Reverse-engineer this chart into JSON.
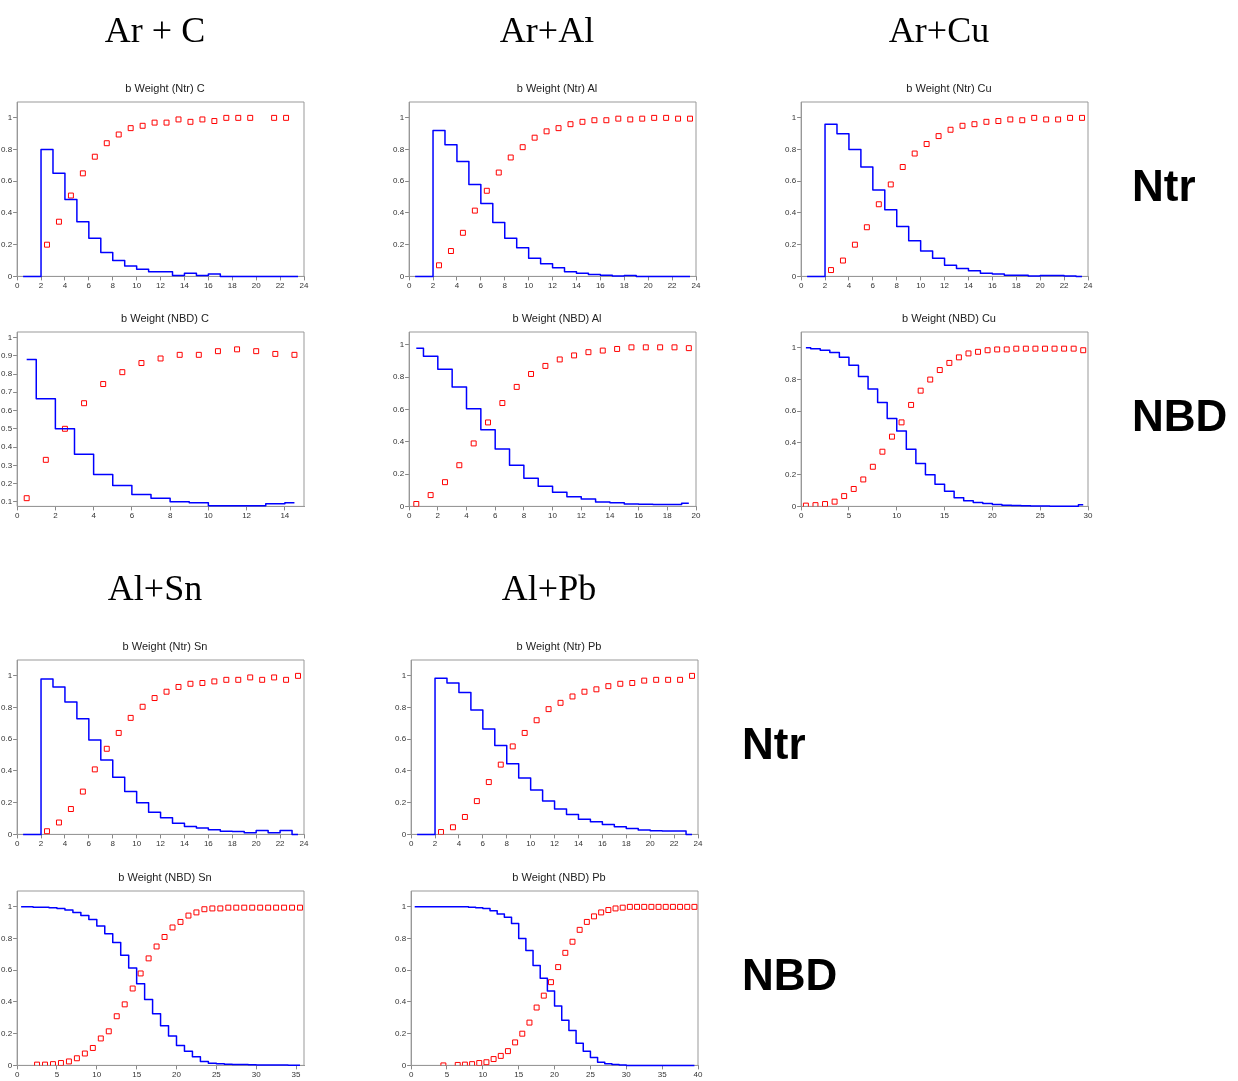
{
  "chart_data": [
    {
      "type": "step",
      "title": "Ar + C",
      "subtitle": "b Weight (Ntr) C",
      "xlim": [
        0,
        24
      ],
      "xticks": [
        0,
        2,
        4,
        6,
        8,
        10,
        12,
        14,
        16,
        18,
        20,
        22,
        24
      ],
      "ylim": [
        0,
        1.1
      ],
      "yticks": [
        0,
        0.2,
        0.4,
        0.6,
        0.8,
        1
      ],
      "grid": false,
      "series": [
        {
          "color": "#0000ff",
          "x": [
            0.5,
            1.5,
            2.5,
            3.5,
            4.5,
            5.5,
            6.5,
            7.5,
            8.5,
            9.5,
            10.5,
            11.5,
            12.5,
            13.5,
            14.5,
            15.5,
            16.5,
            17.5,
            18.5,
            19.5,
            20.5,
            21.5,
            22.5,
            23.5
          ],
          "values": [
            0,
            0,
            0.8,
            0.65,
            0.485,
            0.345,
            0.24,
            0.15,
            0.1,
            0.065,
            0.045,
            0.03,
            0.03,
            0.005,
            0.02,
            0.005,
            0.015,
            0,
            0,
            0,
            0,
            0,
            0,
            0
          ]
        },
        {
          "type": "scatter",
          "color": "#ff0000",
          "marker": "square",
          "x": [
            2.5,
            3.5,
            4.5,
            5.5,
            6.5,
            7.5,
            8.5,
            9.5,
            10.5,
            11.5,
            12.5,
            13.5,
            14.5,
            15.5,
            16.5,
            17.5,
            18.5,
            19.5,
            20.5,
            21.5,
            22.5
          ],
          "values": [
            0.2,
            0.345,
            0.51,
            0.65,
            0.755,
            0.84,
            0.895,
            0.935,
            0.95,
            0.97,
            0.97,
            0.99,
            0.975,
            0.99,
            0.98,
            1.0,
            1.0,
            1.0,
            null,
            1.0,
            1.0
          ]
        }
      ]
    },
    {
      "type": "step",
      "title": "Ar+Al",
      "subtitle": "b Weight (Ntr) Al",
      "xlim": [
        0,
        24
      ],
      "xticks": [
        0,
        2,
        4,
        6,
        8,
        10,
        12,
        14,
        16,
        18,
        20,
        22,
        24
      ],
      "ylim": [
        0,
        1.1
      ],
      "yticks": [
        0,
        0.2,
        0.4,
        0.6,
        0.8,
        1
      ],
      "grid": false,
      "series": [
        {
          "color": "#0000ff",
          "x": [
            0.5,
            1.5,
            2.5,
            3.5,
            4.5,
            5.5,
            6.5,
            7.5,
            8.5,
            9.5,
            10.5,
            11.5,
            12.5,
            13.5,
            14.5,
            15.5,
            16.5,
            17.5,
            18.5,
            19.5,
            20.5,
            21.5,
            22.5,
            23.5
          ],
          "values": [
            0,
            0,
            0.92,
            0.83,
            0.725,
            0.58,
            0.46,
            0.34,
            0.24,
            0.18,
            0.115,
            0.08,
            0.055,
            0.03,
            0.02,
            0.012,
            0.008,
            0.003,
            0.005,
            0,
            0,
            0,
            0,
            0
          ]
        },
        {
          "type": "scatter",
          "color": "#ff0000",
          "marker": "square",
          "x": [
            2.5,
            3.5,
            4.5,
            5.5,
            6.5,
            7.5,
            8.5,
            9.5,
            10.5,
            11.5,
            12.5,
            13.5,
            14.5,
            15.5,
            16.5,
            17.5,
            18.5,
            19.5,
            20.5,
            21.5,
            22.5,
            23.5
          ],
          "values": [
            0.07,
            0.16,
            0.275,
            0.415,
            0.54,
            0.655,
            0.75,
            0.815,
            0.875,
            0.915,
            0.935,
            0.96,
            0.975,
            0.985,
            0.985,
            0.995,
            0.99,
            0.995,
            1.0,
            1.0,
            0.995,
            0.995
          ]
        }
      ]
    },
    {
      "type": "step",
      "title": "Ar+Cu",
      "subtitle": "b Weight (Ntr) Cu",
      "annotations": [
        "Ntr"
      ],
      "xlim": [
        0,
        24
      ],
      "xticks": [
        0,
        2,
        4,
        6,
        8,
        10,
        12,
        14,
        16,
        18,
        20,
        22,
        24
      ],
      "ylim": [
        0,
        1.1
      ],
      "yticks": [
        0,
        0.2,
        0.4,
        0.6,
        0.8,
        1
      ],
      "grid": false,
      "series": [
        {
          "color": "#0000ff",
          "x": [
            0.5,
            1.5,
            2.5,
            3.5,
            4.5,
            5.5,
            6.5,
            7.5,
            8.5,
            9.5,
            10.5,
            11.5,
            12.5,
            13.5,
            14.5,
            15.5,
            16.5,
            17.5,
            18.5,
            19.5,
            20.5,
            21.5,
            22.5,
            23.5
          ],
          "values": [
            0,
            0,
            0.96,
            0.9,
            0.8,
            0.69,
            0.545,
            0.42,
            0.315,
            0.225,
            0.16,
            0.115,
            0.07,
            0.05,
            0.035,
            0.02,
            0.015,
            0.008,
            0.008,
            0.003,
            0.005,
            0.005,
            0.002,
            0
          ]
        },
        {
          "type": "scatter",
          "color": "#ff0000",
          "marker": "square",
          "x": [
            2.5,
            3.5,
            4.5,
            5.5,
            6.5,
            7.5,
            8.5,
            9.5,
            10.5,
            11.5,
            12.5,
            13.5,
            14.5,
            15.5,
            16.5,
            17.5,
            18.5,
            19.5,
            20.5,
            21.5,
            22.5,
            23.5
          ],
          "values": [
            0.04,
            0.1,
            0.2,
            0.31,
            0.455,
            0.58,
            0.69,
            0.775,
            0.835,
            0.885,
            0.925,
            0.95,
            0.96,
            0.975,
            0.98,
            0.99,
            0.985,
            1.0,
            0.99,
            0.99,
            1.0,
            1.0
          ]
        }
      ]
    },
    {
      "type": "step",
      "subtitle": "b Weight (NBD) C",
      "xlim": [
        0,
        15
      ],
      "xticks": [
        0,
        2,
        4,
        6,
        8,
        10,
        12,
        14
      ],
      "ylim": [
        0.075,
        1.03
      ],
      "yticks": [
        0.1,
        0.2,
        0.3,
        0.4,
        0.5,
        0.6,
        0.7,
        0.8,
        0.9,
        1
      ],
      "grid": false,
      "series": [
        {
          "color": "#0000ff",
          "x": [
            0.5,
            1.5,
            2.5,
            3.5,
            4.5,
            5.5,
            6.5,
            7.5,
            8.5,
            9.5,
            10.5,
            11.5,
            12.5,
            13.5,
            14.5
          ],
          "values": [
            0.88,
            0.665,
            0.5,
            0.36,
            0.25,
            0.19,
            0.14,
            0.12,
            0.1,
            0.095,
            0.078,
            0.078,
            0.078,
            0.09,
            0.095
          ]
        },
        {
          "type": "scatter",
          "color": "#ff0000",
          "marker": "square",
          "x": [
            0.5,
            1.5,
            2.5,
            3.5,
            4.5,
            5.5,
            6.5,
            7.5,
            8.5,
            9.5,
            10.5,
            11.5,
            12.5,
            13.5,
            14.5
          ],
          "values": [
            0.12,
            0.33,
            0.5,
            0.64,
            0.745,
            0.81,
            0.86,
            0.885,
            0.905,
            0.905,
            0.925,
            0.935,
            0.925,
            0.91,
            0.905
          ]
        }
      ]
    },
    {
      "type": "step",
      "subtitle": "b Weight (NBD) Al",
      "xlim": [
        0,
        20
      ],
      "xticks": [
        0,
        2,
        4,
        6,
        8,
        10,
        12,
        14,
        16,
        18,
        20
      ],
      "ylim": [
        0,
        1.08
      ],
      "yticks": [
        0,
        0.2,
        0.4,
        0.6,
        0.8,
        1
      ],
      "grid": false,
      "series": [
        {
          "color": "#0000ff",
          "x": [
            0.5,
            1.5,
            2.5,
            3.5,
            4.5,
            5.5,
            6.5,
            7.5,
            8.5,
            9.5,
            10.5,
            11.5,
            12.5,
            13.5,
            14.5,
            15.5,
            16.5,
            17.5,
            18.5,
            19.5
          ],
          "values": [
            0.98,
            0.93,
            0.85,
            0.74,
            0.605,
            0.475,
            0.355,
            0.255,
            0.175,
            0.125,
            0.088,
            0.06,
            0.046,
            0.028,
            0.022,
            0.015,
            0.013,
            0.011,
            0.011,
            0.02
          ]
        },
        {
          "type": "scatter",
          "color": "#ff0000",
          "marker": "square",
          "x": [
            0.5,
            1.5,
            2.5,
            3.5,
            4.5,
            5.5,
            6.5,
            7.5,
            8.5,
            9.5,
            10.5,
            11.5,
            12.5,
            13.5,
            14.5,
            15.5,
            16.5,
            17.5,
            18.5,
            19.5
          ],
          "values": [
            0.015,
            0.07,
            0.15,
            0.255,
            0.39,
            0.52,
            0.64,
            0.74,
            0.82,
            0.87,
            0.91,
            0.935,
            0.955,
            0.965,
            0.975,
            0.985,
            0.985,
            0.985,
            0.985,
            0.98
          ]
        }
      ]
    },
    {
      "type": "step",
      "subtitle": "b Weight (NBD) Cu",
      "annotations": [
        "NBD"
      ],
      "xlim": [
        0,
        30
      ],
      "xticks": [
        0,
        5,
        10,
        15,
        20,
        25,
        30
      ],
      "ylim": [
        0,
        1.1
      ],
      "yticks": [
        0,
        0.2,
        0.4,
        0.6,
        0.8,
        1
      ],
      "grid": false,
      "series": [
        {
          "color": "#0000ff",
          "x": [
            0.5,
            1.5,
            2.5,
            3.5,
            4.5,
            5.5,
            6.5,
            7.5,
            8.5,
            9.5,
            10.5,
            11.5,
            12.5,
            13.5,
            14.5,
            15.5,
            16.5,
            17.5,
            18.5,
            19.5,
            20.5,
            21.5,
            22.5,
            23.5,
            24.5,
            25.5,
            26.5,
            27.5,
            28.5,
            29.5
          ],
          "values": [
            1.0,
            0.995,
            0.985,
            0.97,
            0.94,
            0.89,
            0.82,
            0.74,
            0.655,
            0.555,
            0.475,
            0.36,
            0.27,
            0.2,
            0.14,
            0.095,
            0.055,
            0.035,
            0.025,
            0.018,
            0.012,
            0.008,
            0.006,
            0.004,
            0.003,
            0.002,
            0.001,
            0.001,
            0.001,
            0.01
          ]
        },
        {
          "type": "scatter",
          "color": "#ff0000",
          "marker": "square",
          "x": [
            0.5,
            1.5,
            2.5,
            3.5,
            4.5,
            5.5,
            6.5,
            7.5,
            8.5,
            9.5,
            10.5,
            11.5,
            12.5,
            13.5,
            14.5,
            15.5,
            16.5,
            17.5,
            18.5,
            19.5,
            20.5,
            21.5,
            22.5,
            23.5,
            24.5,
            25.5,
            26.5,
            27.5,
            28.5,
            29.5
          ],
          "values": [
            0.005,
            0.008,
            0.015,
            0.03,
            0.065,
            0.11,
            0.17,
            0.25,
            0.345,
            0.44,
            0.53,
            0.64,
            0.73,
            0.8,
            0.86,
            0.905,
            0.94,
            0.965,
            0.975,
            0.985,
            0.99,
            0.99,
            0.995,
            0.995,
            0.995,
            0.995,
            0.995,
            0.995,
            0.995,
            0.985
          ]
        }
      ]
    },
    {
      "type": "step",
      "title": "Al+Sn",
      "subtitle": "b Weight (Ntr) Sn",
      "xlim": [
        0,
        24
      ],
      "xticks": [
        0,
        2,
        4,
        6,
        8,
        10,
        12,
        14,
        16,
        18,
        20,
        22,
        24
      ],
      "ylim": [
        0,
        1.1
      ],
      "yticks": [
        0,
        0.2,
        0.4,
        0.6,
        0.8,
        1
      ],
      "grid": false,
      "series": [
        {
          "color": "#0000ff",
          "x": [
            0.5,
            1.5,
            2.5,
            3.5,
            4.5,
            5.5,
            6.5,
            7.5,
            8.5,
            9.5,
            10.5,
            11.5,
            12.5,
            13.5,
            14.5,
            15.5,
            16.5,
            17.5,
            18.5,
            19.5,
            20.5,
            21.5,
            22.5,
            23.5
          ],
          "values": [
            0,
            0,
            0.98,
            0.93,
            0.835,
            0.73,
            0.595,
            0.47,
            0.36,
            0.27,
            0.2,
            0.14,
            0.105,
            0.07,
            0.05,
            0.04,
            0.03,
            0.02,
            0.018,
            0.01,
            0.025,
            0.01,
            0.025,
            0
          ]
        },
        {
          "type": "scatter",
          "color": "#ff0000",
          "marker": "square",
          "x": [
            2.5,
            3.5,
            4.5,
            5.5,
            6.5,
            7.5,
            8.5,
            9.5,
            10.5,
            11.5,
            12.5,
            13.5,
            14.5,
            15.5,
            16.5,
            17.5,
            18.5,
            19.5,
            20.5,
            21.5,
            22.5,
            23.5
          ],
          "values": [
            0.02,
            0.075,
            0.16,
            0.27,
            0.41,
            0.54,
            0.64,
            0.735,
            0.805,
            0.86,
            0.9,
            0.93,
            0.95,
            0.955,
            0.965,
            0.975,
            0.975,
            0.99,
            0.975,
            0.99,
            0.975,
            1.0
          ]
        }
      ]
    },
    {
      "type": "step",
      "title": "Al+Pb",
      "subtitle": "b Weight (Ntr) Pb",
      "annotations": [
        "Ntr"
      ],
      "xlim": [
        0,
        24
      ],
      "xticks": [
        0,
        2,
        4,
        6,
        8,
        10,
        12,
        14,
        16,
        18,
        20,
        22,
        24
      ],
      "ylim": [
        0,
        1.1
      ],
      "yticks": [
        0,
        0.2,
        0.4,
        0.6,
        0.8,
        1
      ],
      "grid": false,
      "series": [
        {
          "color": "#0000ff",
          "x": [
            0.5,
            1.5,
            2.5,
            3.5,
            4.5,
            5.5,
            6.5,
            7.5,
            8.5,
            9.5,
            10.5,
            11.5,
            12.5,
            13.5,
            14.5,
            15.5,
            16.5,
            17.5,
            18.5,
            19.5,
            20.5,
            21.5,
            22.5,
            23.5
          ],
          "values": [
            0,
            0,
            0.985,
            0.955,
            0.895,
            0.785,
            0.665,
            0.56,
            0.445,
            0.355,
            0.28,
            0.21,
            0.16,
            0.125,
            0.095,
            0.08,
            0.063,
            0.048,
            0.037,
            0.028,
            0.023,
            0.022,
            0.022,
            0
          ]
        },
        {
          "type": "scatter",
          "color": "#ff0000",
          "marker": "square",
          "x": [
            2.5,
            3.5,
            4.5,
            5.5,
            6.5,
            7.5,
            8.5,
            9.5,
            10.5,
            11.5,
            12.5,
            13.5,
            14.5,
            15.5,
            16.5,
            17.5,
            18.5,
            19.5,
            20.5,
            21.5,
            22.5,
            23.5
          ],
          "values": [
            0.015,
            0.045,
            0.11,
            0.21,
            0.33,
            0.44,
            0.555,
            0.64,
            0.72,
            0.79,
            0.83,
            0.87,
            0.9,
            0.915,
            0.935,
            0.95,
            0.955,
            0.97,
            0.975,
            0.975,
            0.975,
            1.0
          ]
        }
      ]
    },
    {
      "type": "step",
      "subtitle": "b Weight (NBD) Sn",
      "xlim": [
        0,
        36
      ],
      "xticks": [
        0,
        5,
        10,
        15,
        20,
        25,
        30,
        35
      ],
      "ylim": [
        0,
        1.1
      ],
      "yticks": [
        0,
        0.2,
        0.4,
        0.6,
        0.8,
        1
      ],
      "grid": false,
      "series": [
        {
          "color": "#0000ff",
          "x": [
            0.5,
            1.5,
            2.5,
            3.5,
            4.5,
            5.5,
            6.5,
            7.5,
            8.5,
            9.5,
            10.5,
            11.5,
            12.5,
            13.5,
            14.5,
            15.5,
            16.5,
            17.5,
            18.5,
            19.5,
            20.5,
            21.5,
            22.5,
            23.5,
            24.5,
            25.5,
            26.5,
            27.5,
            28.5,
            29.5,
            30.5,
            31.5,
            32.5,
            33.5,
            34.5,
            35.5
          ],
          "values": [
            1.0,
            1.0,
            0.998,
            0.997,
            0.995,
            0.99,
            0.98,
            0.965,
            0.945,
            0.92,
            0.88,
            0.83,
            0.775,
            0.695,
            0.615,
            0.515,
            0.415,
            0.325,
            0.25,
            0.185,
            0.125,
            0.09,
            0.055,
            0.025,
            0.013,
            0.01,
            0.008,
            0.006,
            0.005,
            0.004,
            0.003,
            0.003,
            0.002,
            0.002,
            0.001,
            0.001
          ]
        },
        {
          "type": "scatter",
          "color": "#ff0000",
          "marker": "square",
          "x": [
            2.5,
            3.5,
            4.5,
            5.5,
            6.5,
            7.5,
            8.5,
            9.5,
            10.5,
            11.5,
            12.5,
            13.5,
            14.5,
            15.5,
            16.5,
            17.5,
            18.5,
            19.5,
            20.5,
            21.5,
            22.5,
            23.5,
            24.5,
            25.5,
            26.5,
            27.5,
            28.5,
            29.5,
            30.5,
            31.5,
            32.5,
            33.5,
            34.5,
            35.5
          ],
          "values": [
            0.005,
            0.005,
            0.008,
            0.015,
            0.025,
            0.045,
            0.075,
            0.11,
            0.17,
            0.215,
            0.31,
            0.385,
            0.485,
            0.58,
            0.675,
            0.75,
            0.81,
            0.87,
            0.905,
            0.945,
            0.965,
            0.985,
            0.99,
            0.99,
            0.995,
            0.995,
            0.995,
            0.995,
            0.995,
            0.995,
            0.995,
            0.995,
            0.995,
            0.995
          ]
        }
      ]
    },
    {
      "type": "step",
      "subtitle": "b Weight (NBD) Pb",
      "annotations": [
        "NBD"
      ],
      "xlim": [
        0,
        40
      ],
      "xticks": [
        0,
        5,
        10,
        15,
        20,
        25,
        30,
        35,
        40
      ],
      "ylim": [
        0,
        1.1
      ],
      "yticks": [
        0,
        0.2,
        0.4,
        0.6,
        0.8,
        1
      ],
      "grid": false,
      "series": [
        {
          "color": "#0000ff",
          "x": [
            0.5,
            1.5,
            2.5,
            3.5,
            4.5,
            5.5,
            6.5,
            7.5,
            8.5,
            9.5,
            10.5,
            11.5,
            12.5,
            13.5,
            14.5,
            15.5,
            16.5,
            17.5,
            18.5,
            19.5,
            20.5,
            21.5,
            22.5,
            23.5,
            24.5,
            25.5,
            26.5,
            27.5,
            28.5,
            29.5,
            30.5,
            31.5,
            32.5,
            33.5,
            34.5,
            35.5,
            36.5,
            37.5,
            38.5,
            39.5
          ],
          "values": [
            1.0,
            1.0,
            1.0,
            1.0,
            1.0,
            1.0,
            1.0,
            1.0,
            0.998,
            0.995,
            0.99,
            0.975,
            0.955,
            0.935,
            0.895,
            0.8,
            0.725,
            0.63,
            0.55,
            0.47,
            0.375,
            0.285,
            0.22,
            0.14,
            0.09,
            0.05,
            0.02,
            0.01,
            0.005,
            0.003,
            0,
            0,
            0,
            0,
            0,
            0,
            0,
            0,
            0,
            0
          ]
        },
        {
          "type": "scatter",
          "color": "#ff0000",
          "marker": "square",
          "x": [
            4.5,
            5.5,
            6.5,
            7.5,
            8.5,
            9.5,
            10.5,
            11.5,
            12.5,
            13.5,
            14.5,
            15.5,
            16.5,
            17.5,
            18.5,
            19.5,
            20.5,
            21.5,
            22.5,
            23.5,
            24.5,
            25.5,
            26.5,
            27.5,
            28.5,
            29.5,
            30.5,
            31.5,
            32.5,
            33.5,
            34.5,
            35.5,
            36.5,
            37.5,
            38.5,
            39.5
          ],
          "values": [
            0.0,
            null,
            0.003,
            0.005,
            0.008,
            0.015,
            0.02,
            0.04,
            0.06,
            0.09,
            0.145,
            0.2,
            0.27,
            0.365,
            0.44,
            0.525,
            0.62,
            0.71,
            0.78,
            0.855,
            0.905,
            0.94,
            0.965,
            0.98,
            0.99,
            0.995,
            1.0,
            1.0,
            1.0,
            1.0,
            1.0,
            1.0,
            1.0,
            1.0,
            1.0,
            1.0
          ]
        }
      ]
    }
  ]
}
